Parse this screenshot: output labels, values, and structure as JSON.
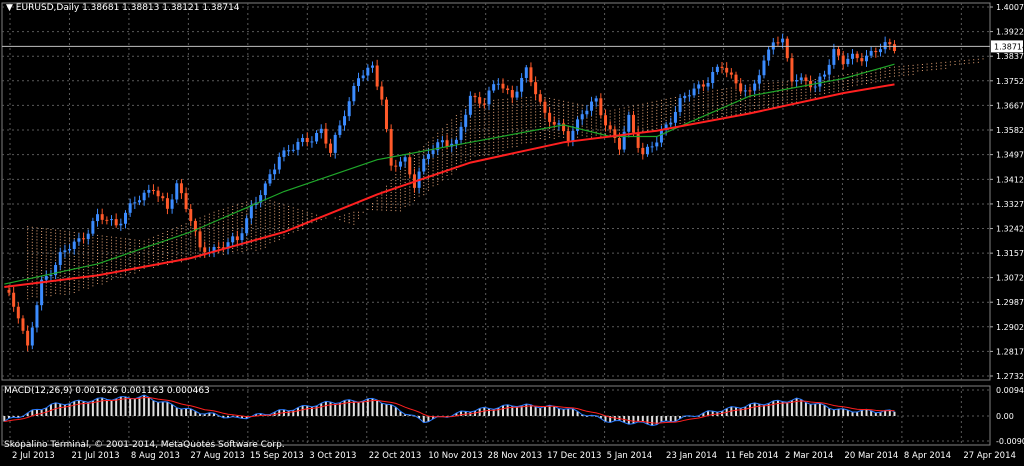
{
  "chart_data": [
    {
      "type": "candlestick",
      "symbol": "EURUSD",
      "timeframe": "Daily",
      "title": "EURUSD,Daily",
      "ohlc_text": "1.38681 1.38813 1.38121 1.38714",
      "last_price": "1.38714",
      "ylim": [
        1.27325,
        1.40075
      ],
      "yticks": [
        "1.40075",
        "1.39225",
        "1.38375",
        "1.37525",
        "1.36675",
        "1.35825",
        "1.34975",
        "1.34120",
        "1.33270",
        "1.32420",
        "1.31570",
        "1.30725",
        "1.29875",
        "1.29025",
        "1.28175",
        "1.27325"
      ],
      "xticks": [
        "2 Jul 2013",
        "21 Jul 2013",
        "8 Aug 2013",
        "27 Aug 2013",
        "15 Sep 2013",
        "3 Oct 2013",
        "22 Oct 2013",
        "10 Nov 2013",
        "28 Nov 2013",
        "17 Dec 2013",
        "5 Jan 2014",
        "23 Jan 2014",
        "11 Feb 2014",
        "2 Mar 2014",
        "20 Mar 2014",
        "8 Apr 2014",
        "27 Apr 2014"
      ],
      "price_path": [
        [
          0,
          1.303
        ],
        [
          3,
          1.295
        ],
        [
          5,
          1.283
        ],
        [
          8,
          1.305
        ],
        [
          12,
          1.315
        ],
        [
          16,
          1.32
        ],
        [
          20,
          1.328
        ],
        [
          24,
          1.326
        ],
        [
          28,
          1.333
        ],
        [
          32,
          1.339
        ],
        [
          35,
          1.33
        ],
        [
          37,
          1.34
        ],
        [
          40,
          1.328
        ],
        [
          42,
          1.316
        ],
        [
          46,
          1.318
        ],
        [
          50,
          1.32
        ],
        [
          53,
          1.332
        ],
        [
          56,
          1.338
        ],
        [
          59,
          1.35
        ],
        [
          62,
          1.352
        ],
        [
          65,
          1.355
        ],
        [
          68,
          1.358
        ],
        [
          70,
          1.35
        ],
        [
          73,
          1.365
        ],
        [
          76,
          1.376
        ],
        [
          79,
          1.38
        ],
        [
          81,
          1.37
        ],
        [
          83,
          1.345
        ],
        [
          86,
          1.348
        ],
        [
          88,
          1.34
        ],
        [
          91,
          1.35
        ],
        [
          94,
          1.355
        ],
        [
          97,
          1.353
        ],
        [
          100,
          1.37
        ],
        [
          103,
          1.368
        ],
        [
          106,
          1.375
        ],
        [
          109,
          1.37
        ],
        [
          112,
          1.378
        ],
        [
          114,
          1.372
        ],
        [
          116,
          1.364
        ],
        [
          118,
          1.36
        ],
        [
          121,
          1.356
        ],
        [
          124,
          1.364
        ],
        [
          127,
          1.368
        ],
        [
          130,
          1.358
        ],
        [
          132,
          1.352
        ],
        [
          134,
          1.362
        ],
        [
          137,
          1.35
        ],
        [
          140,
          1.354
        ],
        [
          142,
          1.36
        ],
        [
          145,
          1.368
        ],
        [
          148,
          1.372
        ],
        [
          151,
          1.376
        ],
        [
          154,
          1.38
        ],
        [
          157,
          1.375
        ],
        [
          160,
          1.37
        ],
        [
          162,
          1.378
        ],
        [
          165,
          1.39
        ],
        [
          167,
          1.388
        ],
        [
          169,
          1.376
        ],
        [
          172,
          1.376
        ],
        [
          174,
          1.372
        ],
        [
          176,
          1.378
        ],
        [
          178,
          1.386
        ],
        [
          180,
          1.382
        ],
        [
          183,
          1.383
        ],
        [
          186,
          1.385
        ],
        [
          189,
          1.387
        ],
        [
          191,
          1.38714
        ]
      ],
      "ma_green": [
        [
          0,
          1.305
        ],
        [
          20,
          1.312
        ],
        [
          40,
          1.323
        ],
        [
          60,
          1.337
        ],
        [
          80,
          1.348
        ],
        [
          100,
          1.354
        ],
        [
          120,
          1.36
        ],
        [
          130,
          1.356
        ],
        [
          140,
          1.356
        ],
        [
          160,
          1.37
        ],
        [
          180,
          1.376
        ],
        [
          191,
          1.381
        ]
      ],
      "ma_red": [
        [
          0,
          1.304
        ],
        [
          20,
          1.308
        ],
        [
          40,
          1.314
        ],
        [
          60,
          1.323
        ],
        [
          80,
          1.336
        ],
        [
          100,
          1.347
        ],
        [
          120,
          1.354
        ],
        [
          140,
          1.358
        ],
        [
          160,
          1.364
        ],
        [
          180,
          1.371
        ],
        [
          191,
          1.374
        ]
      ],
      "cloud_a": [
        [
          5,
          1.325
        ],
        [
          15,
          1.323
        ],
        [
          30,
          1.32
        ],
        [
          45,
          1.33
        ],
        [
          55,
          1.335
        ],
        [
          65,
          1.33
        ],
        [
          75,
          1.325
        ],
        [
          85,
          1.345
        ],
        [
          100,
          1.368
        ],
        [
          115,
          1.37
        ],
        [
          130,
          1.365
        ],
        [
          145,
          1.37
        ],
        [
          160,
          1.374
        ],
        [
          175,
          1.376
        ],
        [
          190,
          1.38
        ],
        [
          210,
          1.383
        ]
      ],
      "cloud_b": [
        [
          5,
          1.3
        ],
        [
          15,
          1.302
        ],
        [
          30,
          1.31
        ],
        [
          45,
          1.315
        ],
        [
          55,
          1.317
        ],
        [
          65,
          1.325
        ],
        [
          75,
          1.33
        ],
        [
          85,
          1.33
        ],
        [
          100,
          1.348
        ],
        [
          115,
          1.355
        ],
        [
          130,
          1.356
        ],
        [
          145,
          1.36
        ],
        [
          160,
          1.364
        ],
        [
          175,
          1.37
        ],
        [
          190,
          1.376
        ],
        [
          210,
          1.382
        ]
      ]
    },
    {
      "type": "histogram",
      "indicator": "MACD",
      "label": "MACD(12,26,9) 0.001626 0.001163 0.000463",
      "yticks": [
        "0.00943",
        "0.00",
        "-0.00908"
      ],
      "ylim": [
        -0.00908,
        0.00943
      ],
      "macd_path": [
        [
          0,
          -0.002
        ],
        [
          10,
          0.004
        ],
        [
          20,
          0.006
        ],
        [
          30,
          0.007
        ],
        [
          40,
          0.002
        ],
        [
          50,
          -0.001
        ],
        [
          60,
          0.002
        ],
        [
          70,
          0.005
        ],
        [
          80,
          0.006
        ],
        [
          90,
          -0.002
        ],
        [
          100,
          0.002
        ],
        [
          110,
          0.004
        ],
        [
          120,
          0.003
        ],
        [
          130,
          -0.002
        ],
        [
          140,
          -0.003
        ],
        [
          150,
          0.001
        ],
        [
          160,
          0.004
        ],
        [
          170,
          0.006
        ],
        [
          180,
          0.002
        ],
        [
          191,
          0.0016
        ]
      ]
    }
  ],
  "copyright": "Skopalino Terminal, © 2001-2014, MetaQuotes Software Corp."
}
